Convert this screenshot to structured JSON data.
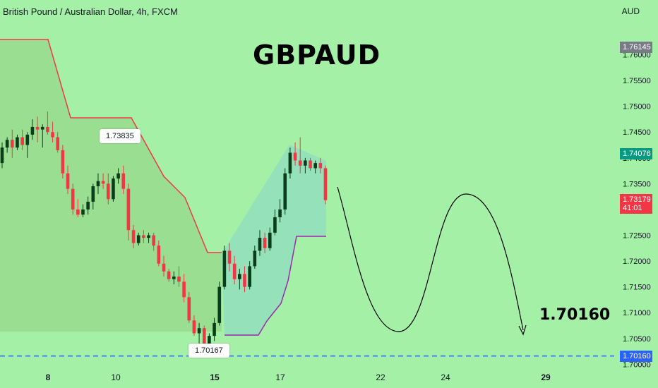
{
  "header": {
    "symbol_title": "British Pound / Australian Dollar, 4h, FXCM",
    "big_title": "GBPAUD",
    "currency": "AUD",
    "target_text": "1.70160"
  },
  "annotations": {
    "swing_high": "1.73835",
    "swing_low": "1.70167"
  },
  "price_tags": {
    "top": {
      "value": "1.76145",
      "color": "#787b86"
    },
    "last": {
      "value": "1.74076",
      "color": "#089981"
    },
    "current": {
      "value": "1.73179",
      "countdown": "41:01",
      "color": "#f23645"
    },
    "target": {
      "value": "1.70160",
      "color": "#2962ff"
    }
  },
  "colors": {
    "background": "#a4f0a6",
    "up_candle": "#0a3d1a",
    "down_candle": "#f23645",
    "upper_band": "#f23645",
    "lower_band": "#9c27b0",
    "target_line": "#2962ff"
  },
  "chart_data": {
    "type": "candlestick",
    "title": "GBPAUD",
    "timeframe": "4h",
    "y_axis": {
      "ticks": [
        "1.76000",
        "1.75500",
        "1.75000",
        "1.74500",
        "1.74000",
        "1.73500",
        "1.73000",
        "1.72500",
        "1.72000",
        "1.71500",
        "1.71000",
        "1.70500",
        "1.70000"
      ],
      "range": [
        1.6995,
        1.7665
      ]
    },
    "x_axis": {
      "ticks": [
        "8",
        "10",
        "15",
        "17",
        "22",
        "24",
        "29"
      ],
      "bold_ticks": [
        "8",
        "15",
        "29"
      ]
    },
    "target_level": 1.7016,
    "annotated_high": 1.73835,
    "annotated_low": 1.70167,
    "candles": [
      [
        1.739,
        1.743,
        1.738,
        1.742
      ],
      [
        1.742,
        1.744,
        1.741,
        1.7435
      ],
      [
        1.7435,
        1.7455,
        1.74,
        1.742
      ],
      [
        1.742,
        1.7445,
        1.7415,
        1.744
      ],
      [
        1.744,
        1.7455,
        1.7415,
        1.7425
      ],
      [
        1.7425,
        1.745,
        1.74,
        1.7445
      ],
      [
        1.7445,
        1.7475,
        1.7435,
        1.746
      ],
      [
        1.746,
        1.748,
        1.743,
        1.7455
      ],
      [
        1.7455,
        1.7465,
        1.742,
        1.746
      ],
      [
        1.746,
        1.749,
        1.7445,
        1.745
      ],
      [
        1.745,
        1.747,
        1.743,
        1.744
      ],
      [
        1.744,
        1.745,
        1.741,
        1.7415
      ],
      [
        1.7415,
        1.7425,
        1.736,
        1.737
      ],
      [
        1.737,
        1.7385,
        1.733,
        1.734
      ],
      [
        1.734,
        1.735,
        1.729,
        1.73
      ],
      [
        1.73,
        1.732,
        1.7285,
        1.729
      ],
      [
        1.729,
        1.731,
        1.7285,
        1.73
      ],
      [
        1.73,
        1.7325,
        1.729,
        1.7315
      ],
      [
        1.7315,
        1.735,
        1.73,
        1.7345
      ],
      [
        1.7345,
        1.737,
        1.733,
        1.7355
      ],
      [
        1.7355,
        1.737,
        1.734,
        1.735
      ],
      [
        1.735,
        1.737,
        1.731,
        1.732
      ],
      [
        1.732,
        1.7365,
        1.7315,
        1.736
      ],
      [
        1.736,
        1.738,
        1.735,
        1.737
      ],
      [
        1.737,
        1.7385,
        1.733,
        1.734
      ],
      [
        1.734,
        1.735,
        1.724,
        1.726
      ],
      [
        1.726,
        1.727,
        1.7225,
        1.7235
      ],
      [
        1.7235,
        1.7255,
        1.723,
        1.725
      ],
      [
        1.725,
        1.726,
        1.7235,
        1.7245
      ],
      [
        1.7245,
        1.7255,
        1.7235,
        1.725
      ],
      [
        1.725,
        1.7255,
        1.722,
        1.723
      ],
      [
        1.723,
        1.724,
        1.719,
        1.7195
      ],
      [
        1.7195,
        1.721,
        1.717,
        1.718
      ],
      [
        1.718,
        1.7185,
        1.716,
        1.7165
      ],
      [
        1.7165,
        1.718,
        1.7155,
        1.717
      ],
      [
        1.717,
        1.719,
        1.715,
        1.716
      ],
      [
        1.716,
        1.7175,
        1.712,
        1.713
      ],
      [
        1.713,
        1.714,
        1.708,
        1.7085
      ],
      [
        1.7085,
        1.7095,
        1.7055,
        1.706
      ],
      [
        1.706,
        1.708,
        1.704,
        1.707
      ],
      [
        1.707,
        1.7075,
        1.7017,
        1.703
      ],
      [
        1.703,
        1.706,
        1.702,
        1.7055
      ],
      [
        1.7055,
        1.709,
        1.7045,
        1.708
      ],
      [
        1.708,
        1.716,
        1.7075,
        1.715
      ],
      [
        1.715,
        1.723,
        1.7145,
        1.722
      ],
      [
        1.722,
        1.7235,
        1.718,
        1.7195
      ],
      [
        1.7195,
        1.721,
        1.7155,
        1.7165
      ],
      [
        1.7165,
        1.7185,
        1.7145,
        1.7175
      ],
      [
        1.7175,
        1.719,
        1.714,
        1.715
      ],
      [
        1.715,
        1.72,
        1.7145,
        1.719
      ],
      [
        1.719,
        1.723,
        1.7185,
        1.722
      ],
      [
        1.722,
        1.726,
        1.721,
        1.7245
      ],
      [
        1.7245,
        1.7255,
        1.7215,
        1.7225
      ],
      [
        1.7225,
        1.7265,
        1.722,
        1.7255
      ],
      [
        1.7255,
        1.73,
        1.725,
        1.7285
      ],
      [
        1.7285,
        1.732,
        1.7275,
        1.73
      ],
      [
        1.73,
        1.738,
        1.729,
        1.737
      ],
      [
        1.737,
        1.742,
        1.736,
        1.741
      ],
      [
        1.741,
        1.743,
        1.7385,
        1.7395
      ],
      [
        1.7395,
        1.744,
        1.737,
        1.7385
      ],
      [
        1.7385,
        1.74,
        1.737,
        1.7395
      ],
      [
        1.7395,
        1.74,
        1.7375,
        1.738
      ],
      [
        1.738,
        1.7395,
        1.737,
        1.739
      ],
      [
        1.739,
        1.74,
        1.737,
        1.738
      ],
      [
        1.738,
        1.7385,
        1.731,
        1.7318
      ]
    ]
  }
}
